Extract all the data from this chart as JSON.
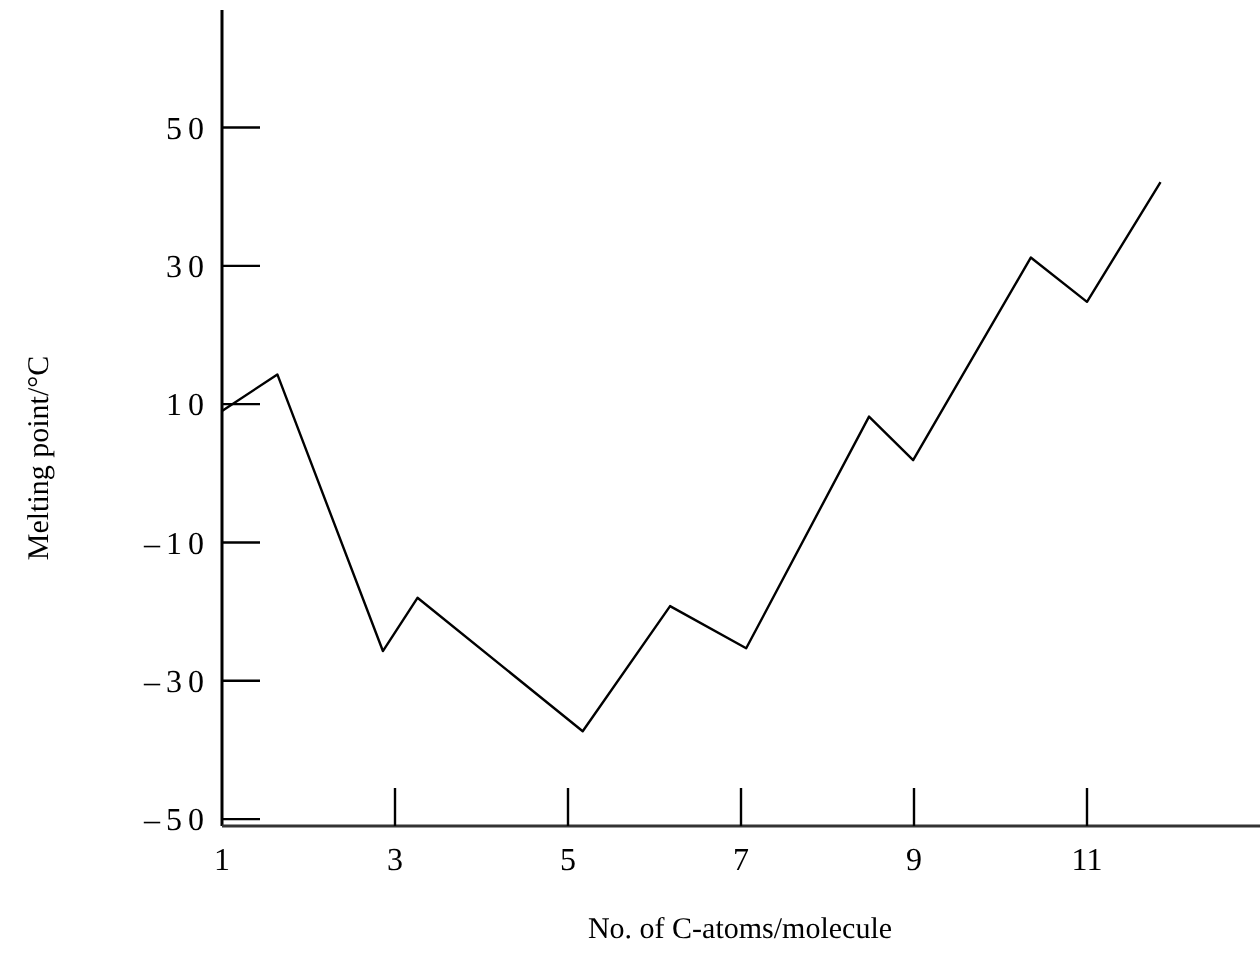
{
  "chart_data": {
    "type": "line",
    "xlabel": "No. of C-atoms/molecule",
    "ylabel": "Melting point/°C",
    "x": [
      1,
      1.64,
      2.86,
      3.26,
      5.17,
      6.18,
      7.06,
      8.48,
      8.99,
      10.35,
      11.0,
      11.85
    ],
    "series": [
      {
        "color": "#000000",
        "values": [
          9,
          14.3,
          -25.7,
          -18,
          -37.3,
          -19.2,
          -25.3,
          8.2,
          1.9,
          31.2,
          24.8,
          42.1
        ]
      }
    ],
    "xlim": [
      1,
      13
    ],
    "ylim": [
      -51,
      67
    ],
    "xticks": [
      1,
      3,
      5,
      7,
      9,
      11
    ],
    "yticks": [
      {
        "value": -50,
        "label": "–50"
      },
      {
        "value": -30,
        "label": "–30"
      },
      {
        "value": -10,
        "label": "–10"
      },
      10,
      30,
      50
    ],
    "marker": "none",
    "line_style": "solid"
  }
}
